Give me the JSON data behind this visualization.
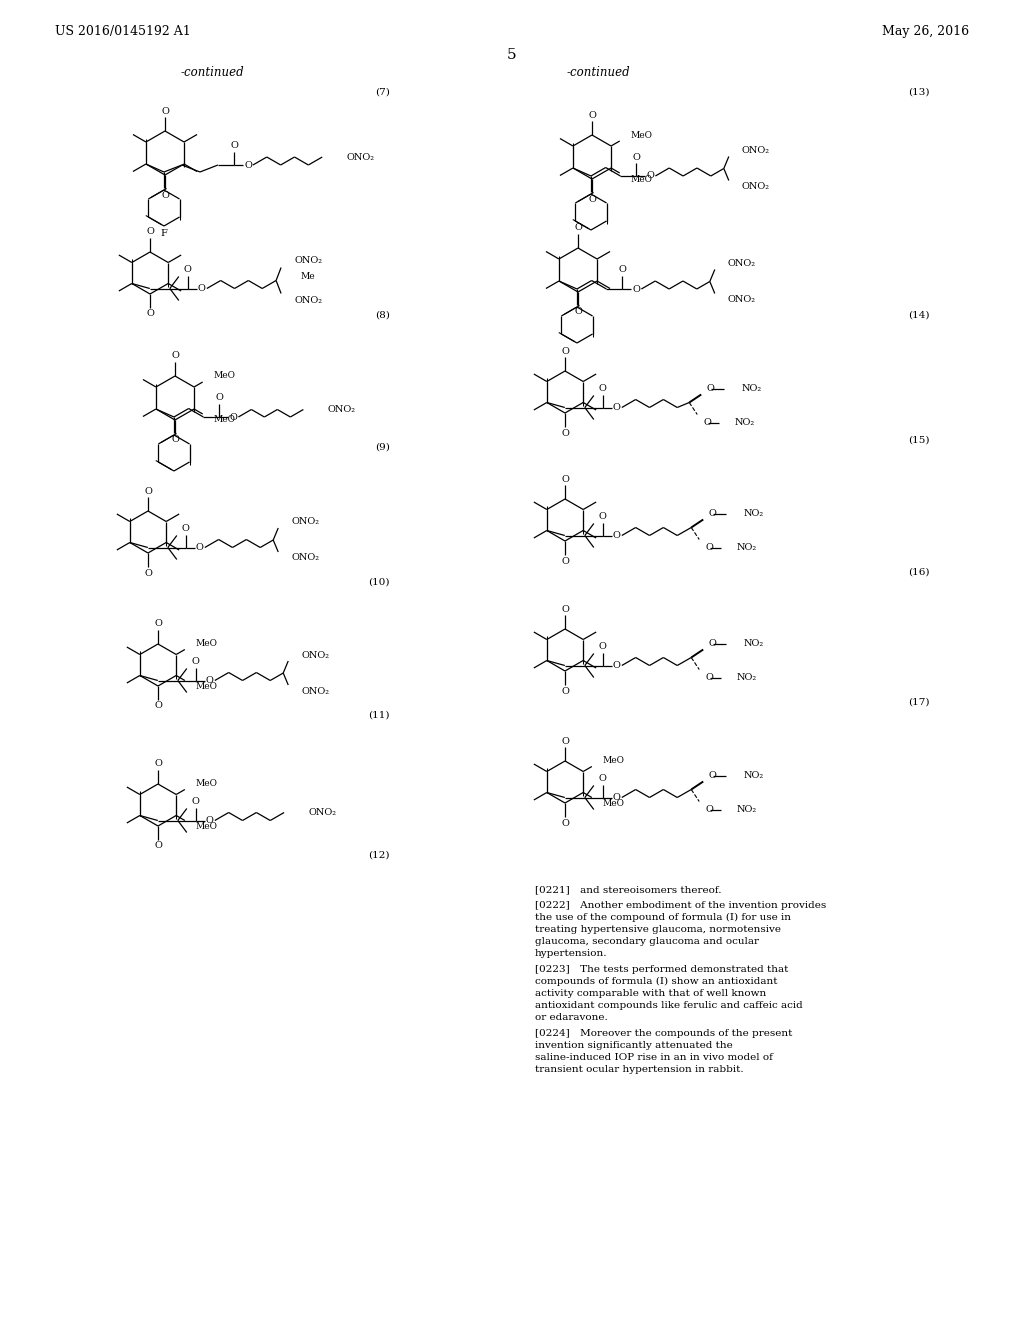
{
  "page_header_left": "US 2016/0145192 A1",
  "page_header_right": "May 26, 2016",
  "page_number": "5",
  "bg_color": "#ffffff",
  "text_color": "#000000",
  "paragraph_221": "[0221] and stereoisomers thereof.",
  "paragraph_222": "[0222] Another embodiment of the invention provides the use of the compound of formula (I) for use in treating hypertensive glaucoma, normotensive glaucoma, secondary glaucoma and ocular hypertension.",
  "paragraph_223": "[0223] The tests performed demonstrated that compounds of formula (I) show an antioxidant activity comparable with that of well known antioxidant compounds like ferulic and caffeic acid or edaravone.",
  "paragraph_224": "[0224] Moreover the compounds of the present invention significantly attenuated the saline-induced IOP rise in an in vivo model of transient ocular hypertension in rabbit."
}
